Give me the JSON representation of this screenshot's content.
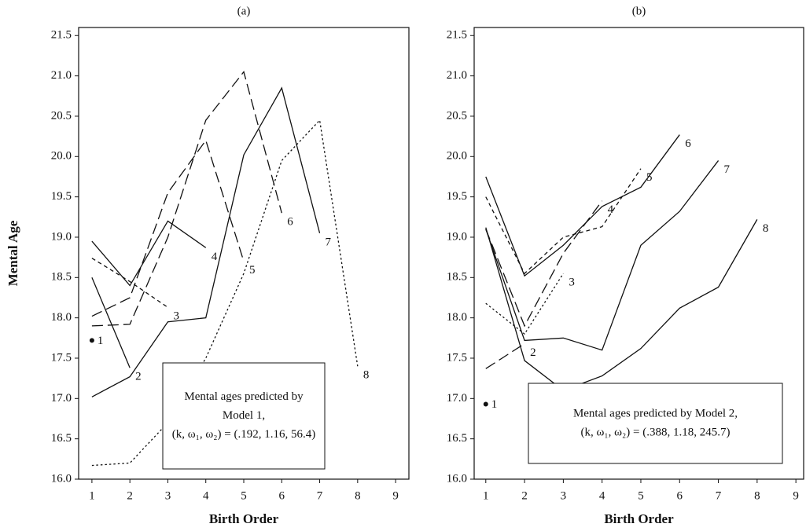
{
  "chart_data": [
    {
      "type": "line",
      "title": "(a)",
      "x_label": "Birth Order",
      "y_label": "Mental Age",
      "x": [
        1,
        2,
        3,
        4,
        5,
        6,
        7,
        8
      ],
      "xlim": [
        0.65,
        9.35
      ],
      "xticks": [
        1,
        2,
        3,
        4,
        5,
        6,
        7,
        8,
        9
      ],
      "ylim": [
        16.0,
        21.6
      ],
      "yticks": [
        {
          "value": 16,
          "label": "16.0"
        },
        16.5,
        {
          "value": 17,
          "label": "17.0"
        },
        17.5,
        {
          "value": 18,
          "label": "18.0"
        },
        18.5,
        {
          "value": 19,
          "label": "19.0"
        },
        19.5,
        {
          "value": 20,
          "label": "20.0"
        },
        20.5,
        {
          "value": 21,
          "label": "21.0"
        },
        21.5
      ],
      "annotation": [
        "Mental ages predicted by",
        "Model 1,",
        "(k, ω₁, ω₂) = (.192, 1.16, 56.4)"
      ],
      "series": [
        {
          "name": "1",
          "color": "#111",
          "dash": "solid",
          "values": [
            17.72,
            null,
            null,
            null,
            null,
            null,
            null,
            null
          ]
        },
        {
          "name": "2",
          "color": "#111",
          "dash": "solid",
          "values": [
            18.5,
            17.38,
            null,
            null,
            null,
            null,
            null,
            null
          ]
        },
        {
          "name": "3",
          "color": "#111",
          "dash": "short-dash",
          "values": [
            18.74,
            18.45,
            18.13,
            null,
            null,
            null,
            null,
            null
          ]
        },
        {
          "name": "4",
          "color": "#111",
          "dash": "solid",
          "values": [
            18.95,
            18.4,
            19.2,
            18.87,
            null,
            null,
            null,
            null
          ]
        },
        {
          "name": "5",
          "color": "#111",
          "dash": "long-dash",
          "values": [
            18.02,
            18.25,
            19.55,
            20.2,
            18.7,
            null,
            null,
            null
          ]
        },
        {
          "name": "6",
          "color": "#111",
          "dash": "long-dash",
          "values": [
            17.9,
            17.92,
            19.0,
            20.45,
            21.05,
            19.3,
            null,
            null
          ]
        },
        {
          "name": "7",
          "color": "#111",
          "dash": "solid",
          "values": [
            17.02,
            17.27,
            17.95,
            18.0,
            20.02,
            20.85,
            19.05,
            null
          ]
        },
        {
          "name": "8",
          "color": "#111",
          "dash": "dotted",
          "values": [
            16.17,
            16.2,
            16.7,
            17.5,
            18.55,
            19.95,
            20.45,
            17.4
          ]
        }
      ]
    },
    {
      "type": "line",
      "title": "(b)",
      "x_label": "Birth Order",
      "x": [
        1,
        2,
        3,
        4,
        5,
        6,
        7,
        8
      ],
      "xlim": [
        0.7,
        9.2
      ],
      "xticks": [
        1,
        2,
        3,
        4,
        5,
        6,
        7,
        8,
        9
      ],
      "ylim": [
        16.0,
        21.6
      ],
      "yticks": [
        {
          "value": 16,
          "label": "16.0"
        },
        16.5,
        {
          "value": 17,
          "label": "17.0"
        },
        17.5,
        {
          "value": 18,
          "label": "18.0"
        },
        18.5,
        {
          "value": 19,
          "label": "19.0"
        },
        19.5,
        {
          "value": 20,
          "label": "20.0"
        },
        20.5,
        {
          "value": 21,
          "label": "21.0"
        },
        21.5
      ],
      "annotation": [
        "Mental ages predicted by Model 2,",
        "(k, ω₁, ω₂) = (.388, 1.18, 245.7)"
      ],
      "series": [
        {
          "name": "1",
          "color": "#111",
          "dash": "solid",
          "values": [
            16.93,
            null,
            null,
            null,
            null,
            null,
            null,
            null
          ]
        },
        {
          "name": "2",
          "color": "#111",
          "dash": "long-dash",
          "values": [
            17.37,
            17.68,
            null,
            null,
            null,
            null,
            null,
            null
          ]
        },
        {
          "name": "3",
          "color": "#111",
          "dash": "dotted",
          "values": [
            18.18,
            17.8,
            18.55,
            null,
            null,
            null,
            null,
            null
          ]
        },
        {
          "name": "4",
          "color": "#111",
          "dash": "long-dash",
          "values": [
            19.1,
            17.9,
            18.8,
            19.45,
            null,
            null,
            null,
            null
          ]
        },
        {
          "name": "5",
          "color": "#111",
          "dash": "short-dash",
          "values": [
            19.5,
            18.55,
            19.0,
            19.13,
            19.85,
            null,
            null,
            null
          ]
        },
        {
          "name": "6",
          "color": "#111",
          "dash": "solid",
          "values": [
            19.75,
            18.52,
            18.9,
            19.38,
            19.62,
            20.27,
            null,
            null
          ]
        },
        {
          "name": "7",
          "color": "#111",
          "dash": "solid",
          "values": [
            19.1,
            17.72,
            17.75,
            17.6,
            18.9,
            19.32,
            19.95,
            null
          ]
        },
        {
          "name": "8",
          "color": "#111",
          "dash": "solid",
          "values": [
            19.12,
            17.47,
            17.1,
            17.28,
            17.62,
            18.12,
            18.38,
            19.22
          ]
        }
      ]
    }
  ]
}
